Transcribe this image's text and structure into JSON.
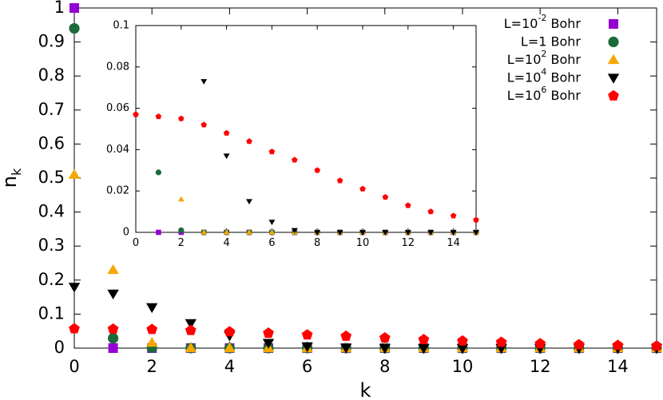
{
  "chart_data": {
    "type": "scatter",
    "xlabel": "k",
    "ylabel": "n",
    "ylabel_sub": "k",
    "xlim": [
      0,
      15
    ],
    "ylim": [
      0,
      1
    ],
    "xticks": [
      "0",
      "2",
      "4",
      "6",
      "8",
      "10",
      "12",
      "14"
    ],
    "yticks": [
      "0",
      "0.1",
      "0.2",
      "0.3",
      "0.4",
      "0.5",
      "0.6",
      "0.7",
      "0.8",
      "0.9",
      "1"
    ],
    "legend_position": "top-right",
    "series": [
      {
        "name": "L=10-2 Bohr",
        "label_base": "L=10",
        "label_sup": "-2",
        "label_tail": " Bohr",
        "marker": "square",
        "color": "#9400d3",
        "x": [
          0,
          1,
          2,
          3,
          4,
          5,
          6,
          7,
          8,
          9,
          10,
          11,
          12,
          13,
          14,
          15
        ],
        "y": [
          1.0,
          0,
          0,
          0,
          0,
          0,
          0,
          0,
          0,
          0,
          0,
          0,
          0,
          0,
          0,
          0
        ]
      },
      {
        "name": "L=1 Bohr",
        "label_base": "L=1",
        "label_sup": "",
        "label_tail": " Bohr",
        "marker": "circle",
        "color": "#1b6b3a",
        "x": [
          0,
          1,
          2,
          3,
          4,
          5,
          6,
          7,
          8,
          9,
          10,
          11,
          12,
          13,
          14,
          15
        ],
        "y": [
          0.94,
          0.029,
          0.001,
          0,
          0,
          0,
          0,
          0,
          0,
          0,
          0,
          0,
          0,
          0,
          0,
          0
        ]
      },
      {
        "name": "L=102 Bohr",
        "label_base": "L=10",
        "label_sup": "2",
        "label_tail": " Bohr",
        "marker": "triangle-up",
        "color": "#f5a800",
        "x": [
          0,
          1,
          2,
          3,
          4,
          5,
          6,
          7,
          8,
          9,
          10,
          11,
          12,
          13,
          14,
          15
        ],
        "y": [
          0.51,
          0.23,
          0.016,
          0,
          0,
          0,
          0,
          0,
          0,
          0,
          0,
          0,
          0,
          0,
          0,
          0
        ]
      },
      {
        "name": "L=104 Bohr",
        "label_base": "L=10",
        "label_sup": "4",
        "label_tail": " Bohr",
        "marker": "triangle-down",
        "color": "#000000",
        "x": [
          0,
          1,
          2,
          3,
          4,
          5,
          6,
          7,
          8,
          9,
          10,
          11,
          12,
          13,
          14,
          15
        ],
        "y": [
          0.18,
          0.16,
          0.12,
          0.073,
          0.037,
          0.015,
          0.005,
          0.001,
          0,
          0,
          0,
          0,
          0,
          0,
          0,
          0
        ]
      },
      {
        "name": "L=106 Bohr",
        "label_base": "L=10",
        "label_sup": "6",
        "label_tail": " Bohr",
        "marker": "pentagon",
        "color": "#ff0000",
        "x": [
          0,
          1,
          2,
          3,
          4,
          5,
          6,
          7,
          8,
          9,
          10,
          11,
          12,
          13,
          14,
          15
        ],
        "y": [
          0.057,
          0.056,
          0.055,
          0.052,
          0.048,
          0.044,
          0.039,
          0.035,
          0.03,
          0.025,
          0.021,
          0.017,
          0.013,
          0.01,
          0.008,
          0.006
        ]
      }
    ],
    "inset": {
      "xlim": [
        0,
        15
      ],
      "ylim": [
        0,
        0.1
      ],
      "xticks": [
        "0",
        "2",
        "4",
        "6",
        "8",
        "10",
        "12",
        "14"
      ],
      "yticks": [
        "0",
        "0.02",
        "0.04",
        "0.06",
        "0.08",
        "0.1"
      ]
    }
  }
}
